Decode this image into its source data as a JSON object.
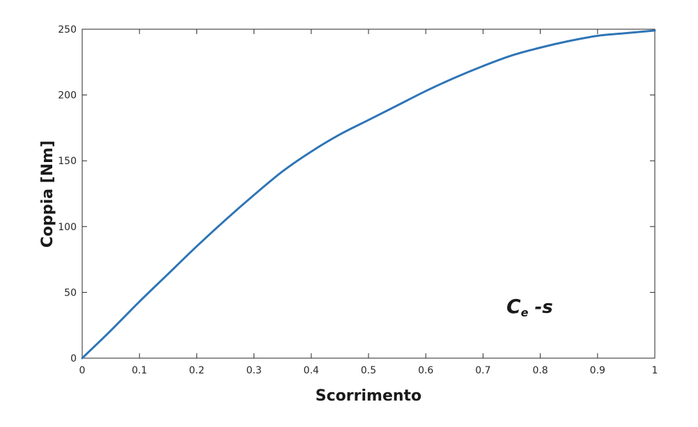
{
  "chart_data": {
    "type": "line",
    "title": "",
    "xlabel": "Scorrimento",
    "ylabel": "Coppia [Nm]",
    "xlim": [
      0,
      1
    ],
    "ylim": [
      0,
      250
    ],
    "xticks": [
      "0",
      "0.1",
      "0.2",
      "0.3",
      "0.4",
      "0.5",
      "0.6",
      "0.7",
      "0.8",
      "0.9",
      "1"
    ],
    "yticks": [
      "0",
      "50",
      "100",
      "150",
      "200",
      "250"
    ],
    "grid": false,
    "series_color": "#2e75b6",
    "annotation": {
      "main": "C",
      "sub": "e",
      "suffix": " -s"
    },
    "series": [
      {
        "x": [
          0,
          0.05,
          0.1,
          0.15,
          0.2,
          0.25,
          0.3,
          0.35,
          0.4,
          0.45,
          0.5,
          0.55,
          0.6,
          0.65,
          0.7,
          0.75,
          0.8,
          0.85,
          0.9,
          0.95,
          1
        ],
        "values": [
          0,
          21,
          43,
          64,
          85,
          105,
          124,
          142,
          157,
          170,
          181,
          192,
          203,
          213,
          222,
          230,
          236,
          241,
          245,
          247,
          249
        ]
      }
    ]
  }
}
